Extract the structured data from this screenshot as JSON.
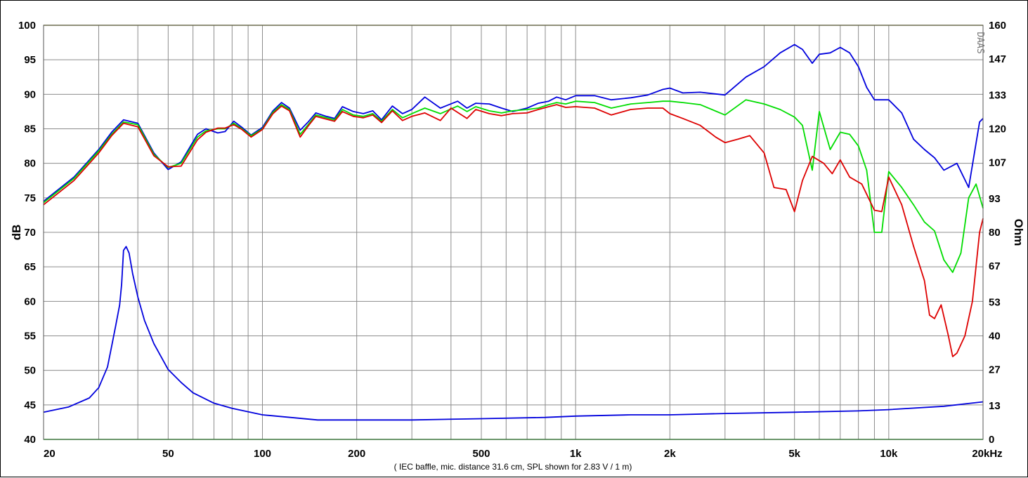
{
  "chart_data": {
    "type": "line",
    "x_scale": "log",
    "xlim": [
      20,
      20000
    ],
    "ylim_left": [
      40,
      100
    ],
    "ylim_right": [
      0,
      160
    ],
    "ylabel_left": "dB",
    "ylabel_right": "Ohm",
    "caption": "( IEC baffle, mic. distance 31.6 cm, SPL shown for 2.83 V / 1 m)",
    "brand": "DAAS",
    "grid": true,
    "x_tick_labels": [
      {
        "value": 20,
        "label": "20"
      },
      {
        "value": 50,
        "label": "50"
      },
      {
        "value": 100,
        "label": "100"
      },
      {
        "value": 200,
        "label": "200"
      },
      {
        "value": 500,
        "label": "500"
      },
      {
        "value": 1000,
        "label": "1k"
      },
      {
        "value": 2000,
        "label": "2k"
      },
      {
        "value": 5000,
        "label": "5k"
      },
      {
        "value": 10000,
        "label": "10k"
      },
      {
        "value": 20000,
        "label": "20kHz"
      }
    ],
    "x_gridlines": [
      20,
      30,
      40,
      50,
      60,
      70,
      80,
      90,
      100,
      200,
      300,
      400,
      500,
      600,
      700,
      800,
      900,
      1000,
      2000,
      3000,
      4000,
      5000,
      6000,
      7000,
      8000,
      9000,
      10000,
      20000
    ],
    "left_ticks": [
      {
        "value": 100,
        "label": "100"
      },
      {
        "value": 95,
        "label": "95"
      },
      {
        "value": 90,
        "label": "90"
      },
      {
        "value": 85,
        "label": "85"
      },
      {
        "value": 80,
        "label": "80"
      },
      {
        "value": 75,
        "label": "75"
      },
      {
        "value": 70,
        "label": "70"
      },
      {
        "value": 65,
        "label": "65"
      },
      {
        "value": 60,
        "label": "60"
      },
      {
        "value": 55,
        "label": "55"
      },
      {
        "value": 50,
        "label": "50"
      },
      {
        "value": 45,
        "label": "45"
      },
      {
        "value": 40,
        "label": "40"
      }
    ],
    "right_ticks": [
      {
        "value": 160,
        "label": "160"
      },
      {
        "value": 147,
        "label": "147"
      },
      {
        "value": 133,
        "label": "133"
      },
      {
        "value": 120,
        "label": "120"
      },
      {
        "value": 107,
        "label": "107"
      },
      {
        "value": 93,
        "label": "93"
      },
      {
        "value": 80,
        "label": "80"
      },
      {
        "value": 67,
        "label": "67"
      },
      {
        "value": 53,
        "label": "53"
      },
      {
        "value": 40,
        "label": "40"
      },
      {
        "value": 27,
        "label": "27"
      },
      {
        "value": 13,
        "label": "13"
      },
      {
        "value": 0,
        "label": "0"
      }
    ],
    "series": [
      {
        "axis": "left",
        "color": "#0000dd",
        "points": [
          [
            20,
            74.5
          ],
          [
            25,
            78
          ],
          [
            30,
            82
          ],
          [
            33,
            84.5
          ],
          [
            36,
            86.3
          ],
          [
            40,
            85.8
          ],
          [
            45,
            81.5
          ],
          [
            50,
            79.1
          ],
          [
            55,
            80.2
          ],
          [
            62,
            84.2
          ],
          [
            66,
            85
          ],
          [
            72,
            84.4
          ],
          [
            76,
            84.6
          ],
          [
            81,
            86.1
          ],
          [
            86,
            85.2
          ],
          [
            92,
            84.1
          ],
          [
            100,
            85.2
          ],
          [
            108,
            87.6
          ],
          [
            115,
            88.8
          ],
          [
            122,
            88
          ],
          [
            132,
            84.8
          ],
          [
            140,
            86
          ],
          [
            148,
            87.3
          ],
          [
            160,
            86.8
          ],
          [
            170,
            86.5
          ],
          [
            180,
            88.2
          ],
          [
            195,
            87.5
          ],
          [
            210,
            87.2
          ],
          [
            225,
            87.6
          ],
          [
            240,
            86.3
          ],
          [
            260,
            88.3
          ],
          [
            280,
            87.2
          ],
          [
            300,
            87.8
          ],
          [
            330,
            89.6
          ],
          [
            370,
            88
          ],
          [
            420,
            89
          ],
          [
            450,
            88
          ],
          [
            480,
            88.7
          ],
          [
            530,
            88.6
          ],
          [
            580,
            88
          ],
          [
            630,
            87.5
          ],
          [
            700,
            88
          ],
          [
            760,
            88.7
          ],
          [
            820,
            89
          ],
          [
            870,
            89.6
          ],
          [
            930,
            89.2
          ],
          [
            1000,
            89.8
          ],
          [
            1150,
            89.8
          ],
          [
            1300,
            89.2
          ],
          [
            1500,
            89.5
          ],
          [
            1700,
            89.9
          ],
          [
            1900,
            90.7
          ],
          [
            2000,
            90.9
          ],
          [
            2200,
            90.2
          ],
          [
            2500,
            90.3
          ],
          [
            3000,
            89.9
          ],
          [
            3500,
            92.5
          ],
          [
            4000,
            94
          ],
          [
            4500,
            96
          ],
          [
            5000,
            97.2
          ],
          [
            5300,
            96.5
          ],
          [
            5700,
            94.5
          ],
          [
            6000,
            95.8
          ],
          [
            6500,
            96
          ],
          [
            7000,
            96.8
          ],
          [
            7500,
            96
          ],
          [
            8000,
            94
          ],
          [
            8500,
            91
          ],
          [
            9000,
            89.2
          ],
          [
            10000,
            89.2
          ],
          [
            11000,
            87.3
          ],
          [
            12000,
            83.5
          ],
          [
            13000,
            82
          ],
          [
            14000,
            80.8
          ],
          [
            15000,
            79
          ],
          [
            16500,
            80
          ],
          [
            18000,
            76.5
          ],
          [
            19500,
            86
          ],
          [
            20000,
            86.5
          ]
        ]
      },
      {
        "axis": "left",
        "color": "#00dd00",
        "points": [
          [
            20,
            74.3
          ],
          [
            25,
            77.8
          ],
          [
            30,
            81.8
          ],
          [
            33,
            84.2
          ],
          [
            36,
            86
          ],
          [
            40,
            85.6
          ],
          [
            45,
            81.3
          ],
          [
            50,
            79.4
          ],
          [
            55,
            80
          ],
          [
            62,
            83.8
          ],
          [
            66,
            84.7
          ],
          [
            72,
            85
          ],
          [
            76,
            85
          ],
          [
            81,
            85.8
          ],
          [
            86,
            85
          ],
          [
            92,
            84
          ],
          [
            100,
            85
          ],
          [
            108,
            87.4
          ],
          [
            115,
            88.5
          ],
          [
            122,
            87.8
          ],
          [
            132,
            84.2
          ],
          [
            140,
            85.6
          ],
          [
            148,
            87
          ],
          [
            160,
            86.6
          ],
          [
            170,
            86.3
          ],
          [
            180,
            87.8
          ],
          [
            195,
            87
          ],
          [
            210,
            86.8
          ],
          [
            225,
            87.2
          ],
          [
            240,
            86.1
          ],
          [
            260,
            87.8
          ],
          [
            280,
            86.6
          ],
          [
            300,
            87.2
          ],
          [
            330,
            88
          ],
          [
            370,
            87.2
          ],
          [
            420,
            88.3
          ],
          [
            450,
            87.5
          ],
          [
            480,
            88.2
          ],
          [
            530,
            87.6
          ],
          [
            580,
            87.3
          ],
          [
            630,
            87.6
          ],
          [
            700,
            87.8
          ],
          [
            760,
            88
          ],
          [
            820,
            88.5
          ],
          [
            870,
            88.8
          ],
          [
            930,
            88.6
          ],
          [
            1000,
            89
          ],
          [
            1150,
            88.8
          ],
          [
            1300,
            88
          ],
          [
            1500,
            88.6
          ],
          [
            1700,
            88.8
          ],
          [
            1900,
            89
          ],
          [
            2000,
            89
          ],
          [
            2200,
            88.8
          ],
          [
            2500,
            88.5
          ],
          [
            3000,
            87
          ],
          [
            3500,
            89.2
          ],
          [
            4000,
            88.6
          ],
          [
            4500,
            87.8
          ],
          [
            5000,
            86.7
          ],
          [
            5300,
            85.5
          ],
          [
            5700,
            79
          ],
          [
            6000,
            87.5
          ],
          [
            6500,
            82
          ],
          [
            7000,
            84.5
          ],
          [
            7500,
            84.2
          ],
          [
            8000,
            82.5
          ],
          [
            8500,
            79
          ],
          [
            9000,
            70
          ],
          [
            9500,
            70
          ],
          [
            10000,
            78.8
          ],
          [
            11000,
            76.5
          ],
          [
            12000,
            74
          ],
          [
            13000,
            71.5
          ],
          [
            14000,
            70.2
          ],
          [
            15000,
            66
          ],
          [
            16000,
            64.2
          ],
          [
            17000,
            67
          ],
          [
            18000,
            75
          ],
          [
            19000,
            77
          ],
          [
            20000,
            73.5
          ]
        ]
      },
      {
        "axis": "left",
        "color": "#dd0000",
        "points": [
          [
            20,
            74
          ],
          [
            25,
            77.5
          ],
          [
            30,
            81.5
          ],
          [
            33,
            84
          ],
          [
            36,
            85.8
          ],
          [
            40,
            85.3
          ],
          [
            45,
            81.1
          ],
          [
            50,
            79.5
          ],
          [
            55,
            79.6
          ],
          [
            62,
            83.4
          ],
          [
            66,
            84.5
          ],
          [
            72,
            85.1
          ],
          [
            76,
            85.1
          ],
          [
            81,
            85.6
          ],
          [
            86,
            84.9
          ],
          [
            92,
            83.8
          ],
          [
            100,
            84.9
          ],
          [
            108,
            87.2
          ],
          [
            115,
            88.3
          ],
          [
            122,
            87.6
          ],
          [
            132,
            83.8
          ],
          [
            140,
            85.4
          ],
          [
            148,
            86.8
          ],
          [
            160,
            86.4
          ],
          [
            170,
            86.1
          ],
          [
            180,
            87.5
          ],
          [
            195,
            86.8
          ],
          [
            210,
            86.6
          ],
          [
            225,
            87
          ],
          [
            240,
            85.9
          ],
          [
            260,
            87.6
          ],
          [
            280,
            86.2
          ],
          [
            300,
            86.8
          ],
          [
            330,
            87.3
          ],
          [
            370,
            86.2
          ],
          [
            400,
            88
          ],
          [
            450,
            86.5
          ],
          [
            480,
            87.8
          ],
          [
            530,
            87.2
          ],
          [
            580,
            86.9
          ],
          [
            630,
            87.2
          ],
          [
            700,
            87.3
          ],
          [
            760,
            87.8
          ],
          [
            820,
            88.2
          ],
          [
            870,
            88.5
          ],
          [
            930,
            88.1
          ],
          [
            1000,
            88.2
          ],
          [
            1150,
            88
          ],
          [
            1300,
            87
          ],
          [
            1500,
            87.8
          ],
          [
            1700,
            88
          ],
          [
            1900,
            88
          ],
          [
            2000,
            87.2
          ],
          [
            2200,
            86.5
          ],
          [
            2500,
            85.5
          ],
          [
            2800,
            83.8
          ],
          [
            3000,
            83
          ],
          [
            3300,
            83.5
          ],
          [
            3600,
            84
          ],
          [
            4000,
            81.5
          ],
          [
            4300,
            76.5
          ],
          [
            4700,
            76.2
          ],
          [
            5000,
            73
          ],
          [
            5300,
            77.5
          ],
          [
            5700,
            81
          ],
          [
            6200,
            80
          ],
          [
            6600,
            78.5
          ],
          [
            7000,
            80.5
          ],
          [
            7500,
            78
          ],
          [
            8200,
            77
          ],
          [
            9000,
            73.2
          ],
          [
            9500,
            73
          ],
          [
            10000,
            78
          ],
          [
            11000,
            74
          ],
          [
            12000,
            68
          ],
          [
            13000,
            63
          ],
          [
            13500,
            58
          ],
          [
            14000,
            57.5
          ],
          [
            14700,
            59.5
          ],
          [
            15500,
            55
          ],
          [
            16000,
            52
          ],
          [
            16500,
            52.5
          ],
          [
            17500,
            55
          ],
          [
            18500,
            60
          ],
          [
            19500,
            70
          ],
          [
            20000,
            72
          ]
        ]
      },
      {
        "axis": "right",
        "color": "#0000dd",
        "points": [
          [
            20,
            10.5
          ],
          [
            24,
            12.5
          ],
          [
            28,
            16
          ],
          [
            30,
            20
          ],
          [
            32,
            28
          ],
          [
            33,
            36
          ],
          [
            34,
            44
          ],
          [
            35,
            52
          ],
          [
            35.5,
            60
          ],
          [
            36,
            73
          ],
          [
            36.7,
            74.5
          ],
          [
            37.5,
            72
          ],
          [
            38.5,
            64
          ],
          [
            40,
            55
          ],
          [
            42,
            46
          ],
          [
            45,
            37
          ],
          [
            50,
            27
          ],
          [
            55,
            22
          ],
          [
            60,
            18
          ],
          [
            70,
            14
          ],
          [
            80,
            12
          ],
          [
            100,
            9.5
          ],
          [
            150,
            7.5
          ],
          [
            200,
            7.5
          ],
          [
            300,
            7.5
          ],
          [
            500,
            8
          ],
          [
            800,
            8.5
          ],
          [
            1000,
            9
          ],
          [
            1500,
            9.5
          ],
          [
            2000,
            9.5
          ],
          [
            3000,
            10
          ],
          [
            5000,
            10.5
          ],
          [
            8000,
            11
          ],
          [
            10000,
            11.5
          ],
          [
            15000,
            12.8
          ],
          [
            20000,
            14.5
          ]
        ]
      }
    ]
  }
}
